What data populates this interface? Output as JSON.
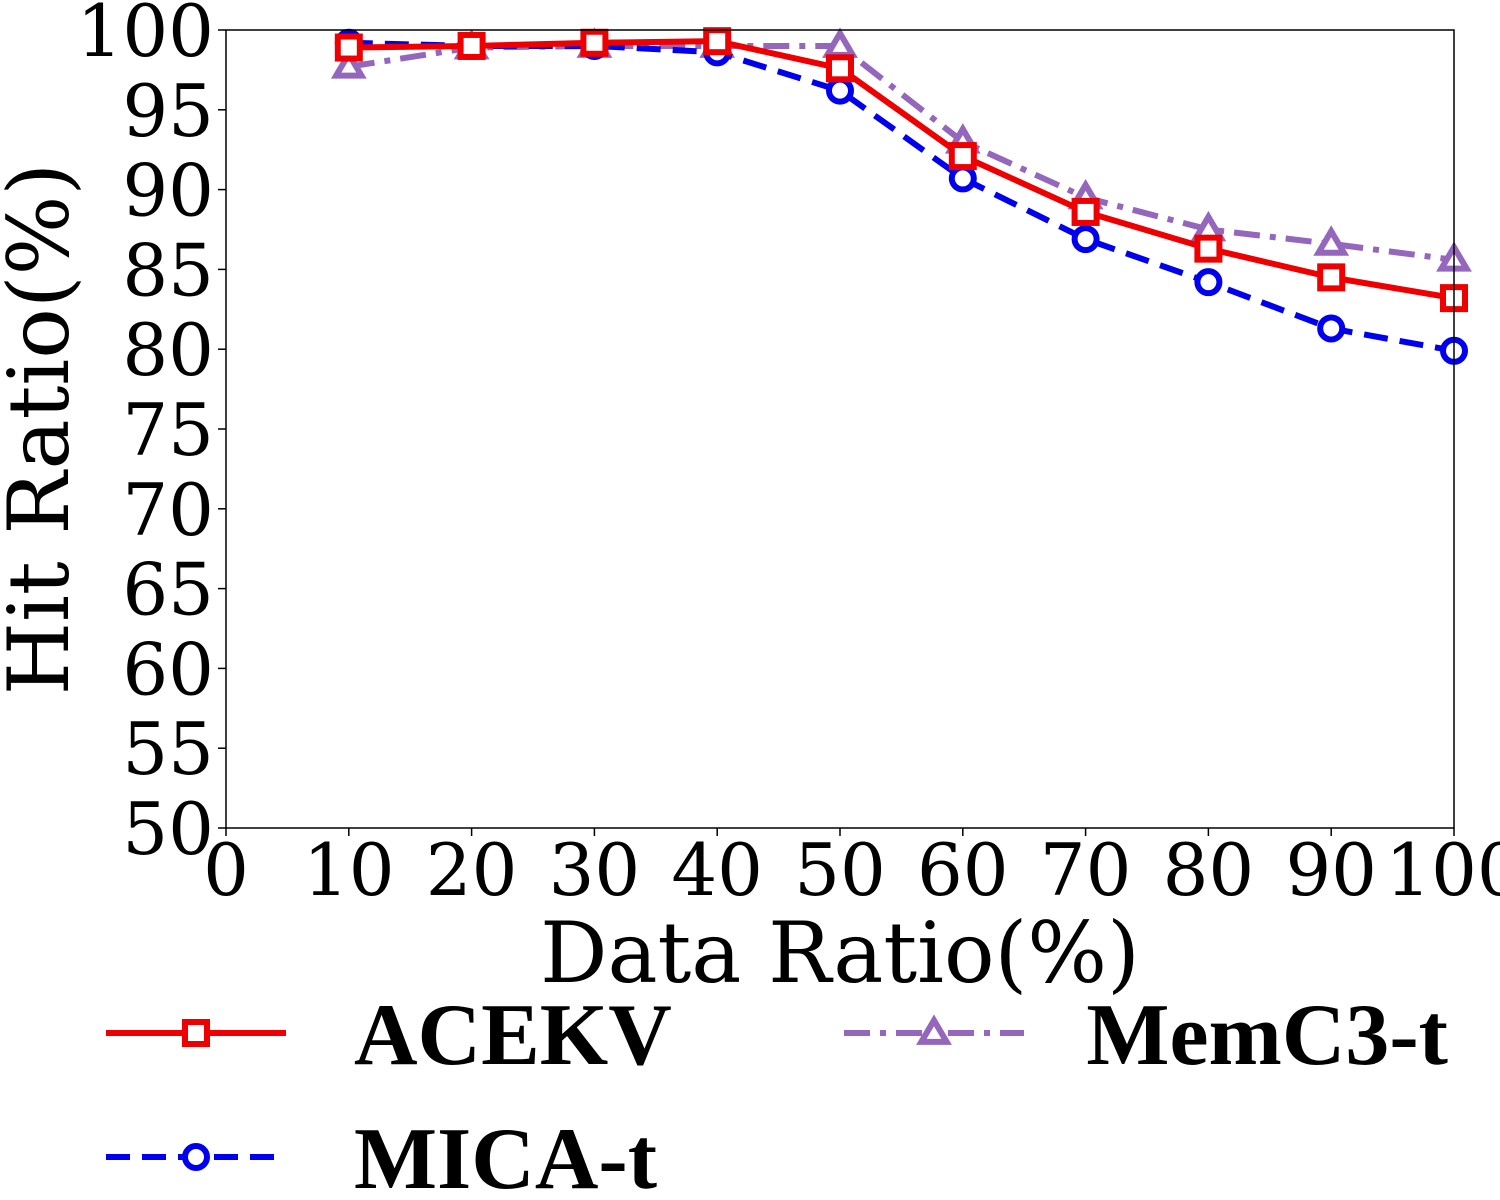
{
  "chart_data": {
    "type": "line",
    "title": "",
    "xlabel": "Data Ratio(%)",
    "ylabel": "Hit Ratio(%)",
    "xlim": [
      0,
      100
    ],
    "ylim": [
      50,
      100
    ],
    "x_ticks": [
      0,
      10,
      20,
      30,
      40,
      50,
      60,
      70,
      80,
      90,
      100
    ],
    "y_ticks": [
      50,
      55,
      60,
      65,
      70,
      75,
      80,
      85,
      90,
      95,
      100
    ],
    "grid": false,
    "legend_position": "bottom",
    "x": [
      10,
      20,
      30,
      40,
      50,
      60,
      70,
      80,
      90,
      100
    ],
    "series": [
      {
        "name": "ACEKV",
        "values": [
          98.9,
          99.0,
          99.2,
          99.3,
          97.6,
          92.1,
          88.6,
          86.3,
          84.5,
          83.2
        ],
        "color": "#ee0000",
        "dash": "solid",
        "marker": "square"
      },
      {
        "name": "MICA-t",
        "values": [
          99.2,
          99.0,
          99.0,
          98.6,
          96.2,
          90.7,
          86.9,
          84.2,
          81.3,
          79.9
        ],
        "color": "#0000ee",
        "dash": "dashed",
        "marker": "circle"
      },
      {
        "name": "MemC3-t",
        "values": [
          97.7,
          98.9,
          99.0,
          99.0,
          99.0,
          93.0,
          89.5,
          87.5,
          86.6,
          85.6
        ],
        "color": "#9467bd",
        "dash": "dashdot",
        "marker": "triangle"
      }
    ]
  }
}
